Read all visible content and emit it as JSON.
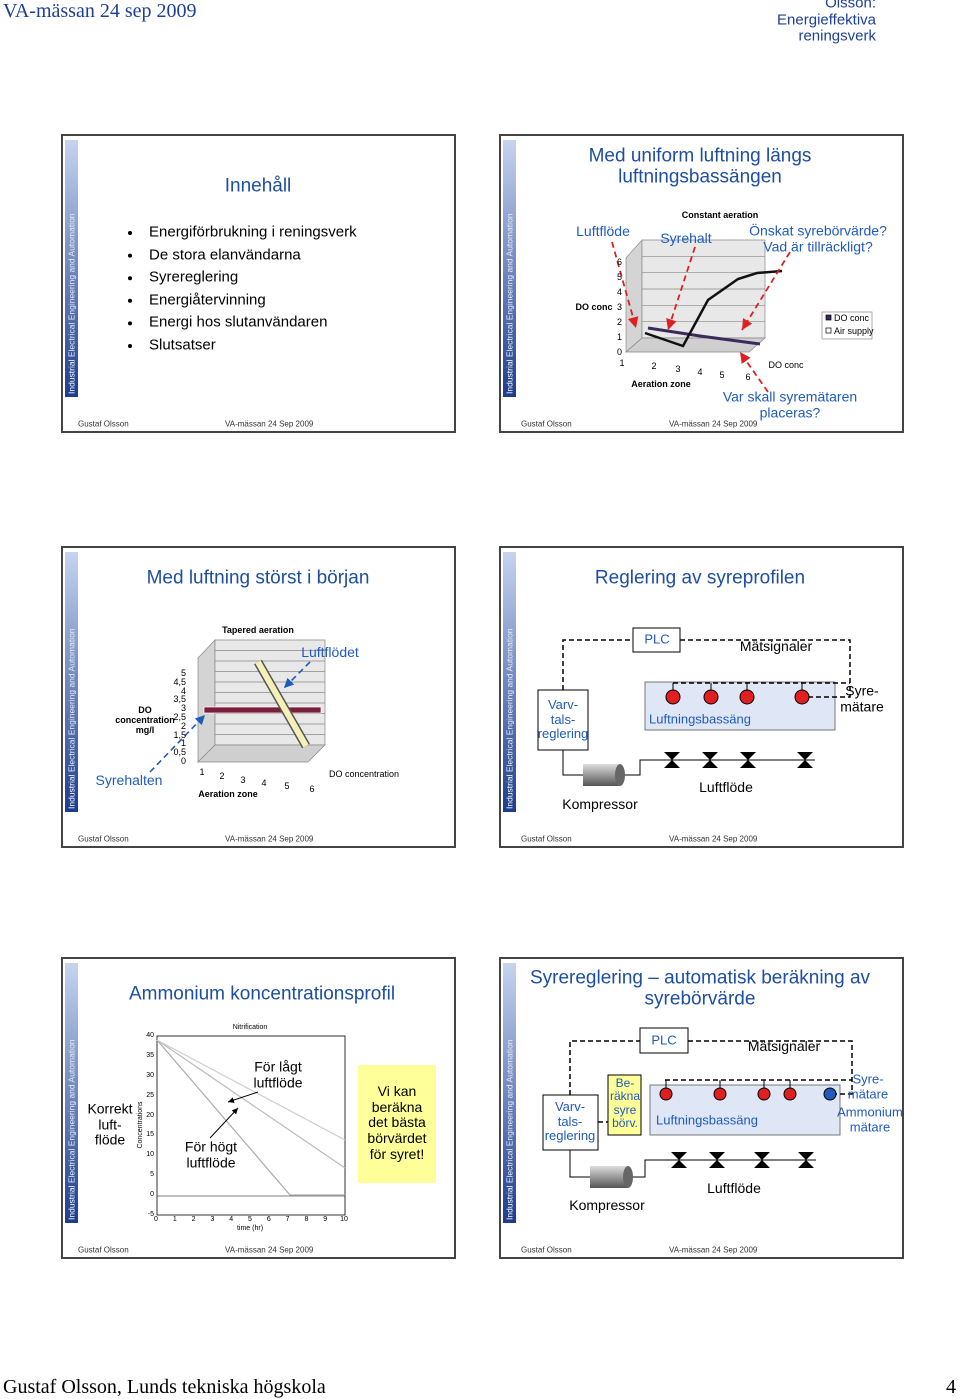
{
  "header": {
    "left": "VA-mässan 24 sep 2009",
    "right": "Gustaf Olsson: Energieffektiva reningsverk"
  },
  "slides": [
    {
      "sidebar": {
        "first": "Industrial",
        "rest": "Electrical Engineering and Automation"
      },
      "title": "Innehåll",
      "bullets": [
        "Energiförbrukning i reningsverk",
        "De stora elanvändarna",
        "Syrereglering",
        "Energiåtervinning",
        "Energi hos slutanvändaren",
        "Slutsatser"
      ],
      "footer": {
        "author": "Gustaf Olsson",
        "event": "VA-mässan 24 Sep 2009"
      }
    },
    {
      "sidebar": {
        "first": "Industrial",
        "rest": "Electrical Engineering and Automation"
      },
      "title": "Med uniform luftning längs luftningsbassängen",
      "chart": {
        "title": "Constant aeration",
        "y_label": "DO conc",
        "yticks": [
          "0",
          "1",
          "2",
          "3",
          "4",
          "5",
          "6"
        ],
        "xticks": [
          "1",
          "2",
          "3",
          "4",
          "5",
          "6"
        ],
        "x_label": "Aeration zone",
        "series_label": "DO conc",
        "legend": [
          "DO conc",
          "Air supply"
        ]
      },
      "annotations": [
        "Luftflöde",
        "Syrehalt",
        "Önskat syrebörvärde?\nVad är tillräckligt?",
        "Var skall syremätaren placeras?"
      ],
      "footer": {
        "author": "Gustaf Olsson",
        "event": "VA-mässan 24 Sep 2009"
      }
    },
    {
      "sidebar": {
        "first": "Industrial",
        "rest": "Electrical Engineering and Automation"
      },
      "title": "Med luftning störst i början",
      "chart": {
        "title": "Tapered aeration",
        "y_label": "DO\nconcentration\nmg/l",
        "yticks": [
          "0",
          "0,5",
          "1",
          "1,5",
          "2",
          "2,5",
          "3",
          "3,5",
          "4",
          "4,5",
          "5"
        ],
        "xticks": [
          "1",
          "2",
          "3",
          "4",
          "5",
          "6"
        ],
        "x_label": "Aeration zone",
        "series_label": "DO concentration"
      },
      "annotations": [
        "Luftflödet",
        "Syrehalten"
      ],
      "footer": {
        "author": "Gustaf Olsson",
        "event": "VA-mässan 24 Sep 2009"
      }
    },
    {
      "sidebar": {
        "first": "Industrial",
        "rest": "Electrical Engineering and Automation"
      },
      "title": "Reglering av syreprofilen",
      "diagram": {
        "plc": "PLC",
        "signals": "Mätsignaler",
        "oxygen_meter": "Syre-\nmätare",
        "speed_control": "Varv-\ntals-\nreglering",
        "basin": "Luftningsbassäng",
        "airflow": "Luftflöde",
        "compressor": "Kompressor"
      },
      "footer": {
        "author": "Gustaf Olsson",
        "event": "VA-mässan 24 Sep 2009"
      }
    },
    {
      "sidebar": {
        "first": "Industrial",
        "rest": "Electrical Engineering and Automation"
      },
      "title": "Ammonium koncentrationsprofil",
      "chart": {
        "title": "Nitrification",
        "y_label": "Concentrations",
        "yticks": [
          "-5",
          "0",
          "5",
          "10",
          "15",
          "20",
          "25",
          "30",
          "35",
          "40"
        ],
        "xticks": [
          "0",
          "1",
          "2",
          "3",
          "4",
          "5",
          "6",
          "7",
          "8",
          "9",
          "10"
        ],
        "x_label": "time (hr)"
      },
      "annotations": [
        "Korrekt\nluft-\nflöde",
        "För lågt\nluftflöde",
        "För högt\nluftflöde",
        "Vi kan\nberäkna\ndet bästa\nbörvärdet\nför syret!"
      ],
      "footer": {
        "author": "Gustaf Olsson",
        "event": "VA-mässan 24 Sep 2009"
      }
    },
    {
      "sidebar": {
        "first": "Industrial",
        "rest": "Electrical Engineering and Automation"
      },
      "title": "Syrereglering – automatisk beräkning av syrebörvärde",
      "diagram": {
        "plc": "PLC",
        "signals": "Mätsignaler",
        "oxygen_meter": "Syre-\nmätare",
        "ammonium_meter": "Ammonium\nmätare",
        "speed_control": "Varv-\ntals-\nreglering",
        "compute": "Be-\nräkna\nsyre\nbörv.",
        "basin": "Luftningsbassäng",
        "airflow": "Luftflöde",
        "compressor": "Kompressor"
      },
      "footer": {
        "author": "Gustaf Olsson",
        "event": "VA-mässan 24 Sep 2009"
      }
    }
  ],
  "footer": {
    "left": "Gustaf Olsson, Lunds tekniska högskola",
    "page": "4"
  }
}
